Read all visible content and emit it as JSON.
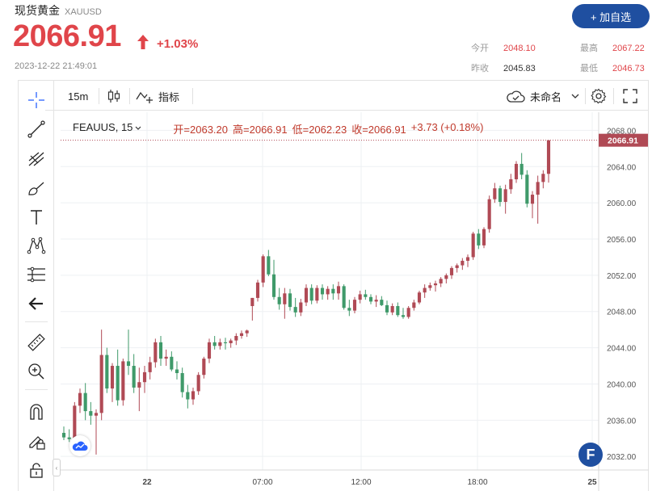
{
  "quote": {
    "name": "现货黄金",
    "code": "XAUUSD",
    "price": "2066.91",
    "change_pct": "+1.03%",
    "timestamp": "2023-12-22 21:49:01",
    "add_watchlist": "+ 加自选",
    "stats": {
      "open_label": "今开",
      "open": "2048.10",
      "high_label": "最高",
      "high": "2067.22",
      "prev_close_label": "昨收",
      "prev_close": "2045.83",
      "low_label": "最低",
      "low": "2046.73"
    },
    "colors": {
      "up": "#e0454a",
      "accent": "#1f4fa0"
    }
  },
  "toolbar": {
    "interval": "15m",
    "indicators_label": "指标",
    "layout_name": "未命名",
    "icons": [
      "candles-icon",
      "indicators-icon",
      "cloud-save-icon",
      "chevron-down-icon",
      "gear-icon",
      "fullscreen-icon"
    ]
  },
  "sidebar": {
    "tools": [
      "crosshair-icon",
      "trendline-icon",
      "fib-icon",
      "brush-icon",
      "text-icon",
      "pattern-icon",
      "measure-lines-icon",
      "back-arrow-icon",
      "ruler-icon",
      "zoom-in-icon",
      "magnet-icon",
      "lock-pencil-icon",
      "lock-icon"
    ]
  },
  "legend": {
    "symbol": "FEAUUS, 15",
    "open": "开=2063.20",
    "high": "高=2066.91",
    "low": "低=2062.23",
    "close": "收=2066.91",
    "change": "+3.73 (+0.18%)"
  },
  "chart_data": {
    "type": "candlestick",
    "interval": "15",
    "last_price_label": "2066.91",
    "y_ticks": [
      "2068.00",
      "2064.00",
      "2060.00",
      "2056.00",
      "2052.00",
      "2048.00",
      "2044.00",
      "2040.00",
      "2036.00",
      "2032.00"
    ],
    "ylim": [
      2030.5,
      2070.0
    ],
    "x_ticks": [
      "22",
      "07:00",
      "12:00",
      "18:00",
      "25"
    ],
    "up_color": "#b04a55",
    "down_color": "#3f9a6a",
    "candles": [
      [
        2034.6,
        2035.3,
        2033.8,
        2034.1
      ],
      [
        2034.1,
        2035.0,
        2033.6,
        2033.9
      ],
      [
        2033.9,
        2038.0,
        2033.4,
        2037.6
      ],
      [
        2037.6,
        2039.5,
        2036.8,
        2039.0
      ],
      [
        2039.0,
        2040.1,
        2036.0,
        2037.0
      ],
      [
        2037.0,
        2038.0,
        2035.5,
        2036.5
      ],
      [
        2036.5,
        2037.2,
        2032.2,
        2036.8
      ],
      [
        2036.8,
        2046.0,
        2036.0,
        2043.2
      ],
      [
        2043.2,
        2044.0,
        2039.0,
        2039.5
      ],
      [
        2039.5,
        2042.3,
        2038.0,
        2042.0
      ],
      [
        2042.0,
        2043.8,
        2037.6,
        2038.2
      ],
      [
        2038.2,
        2042.8,
        2037.6,
        2042.5
      ],
      [
        2042.5,
        2046.0,
        2041.0,
        2042.0
      ],
      [
        2042.0,
        2043.3,
        2039.0,
        2039.6
      ],
      [
        2039.6,
        2041.8,
        2037.0,
        2040.2
      ],
      [
        2040.2,
        2042.0,
        2039.0,
        2041.3
      ],
      [
        2041.3,
        2043.0,
        2040.5,
        2042.4
      ],
      [
        2042.4,
        2045.0,
        2041.8,
        2044.6
      ],
      [
        2044.6,
        2045.3,
        2042.0,
        2042.8
      ],
      [
        2042.8,
        2043.8,
        2042.0,
        2043.0
      ],
      [
        2043.0,
        2043.6,
        2041.4,
        2041.6
      ],
      [
        2041.6,
        2042.5,
        2040.5,
        2041.2
      ],
      [
        2041.2,
        2041.8,
        2038.5,
        2039.1
      ],
      [
        2039.1,
        2039.9,
        2037.3,
        2038.3
      ],
      [
        2038.3,
        2039.6,
        2037.7,
        2039.2
      ],
      [
        2039.2,
        2041.3,
        2038.8,
        2041.0
      ],
      [
        2041.0,
        2043.0,
        2040.6,
        2042.8
      ],
      [
        2042.8,
        2045.0,
        2042.3,
        2044.6
      ],
      [
        2044.6,
        2045.3,
        2043.8,
        2044.2
      ],
      [
        2044.2,
        2045.0,
        2043.8,
        2044.6
      ],
      [
        2044.6,
        2045.1,
        2043.8,
        2044.5
      ],
      [
        2044.5,
        2045.0,
        2044.0,
        2044.8
      ],
      [
        2044.8,
        2045.6,
        2044.3,
        2045.3
      ],
      [
        2045.3,
        2045.9,
        2045.0,
        2045.6
      ],
      [
        2045.6,
        2046.0,
        2045.2,
        2045.9
      ],
      [
        2048.6,
        2049.5,
        2047.0,
        2049.5
      ],
      [
        2049.5,
        2051.5,
        2049.1,
        2051.2
      ],
      [
        2051.2,
        2054.3,
        2050.7,
        2054.1
      ],
      [
        2054.1,
        2054.8,
        2051.9,
        2052.1
      ],
      [
        2052.1,
        2053.7,
        2049.3,
        2049.6
      ],
      [
        2049.6,
        2050.6,
        2048.2,
        2048.8
      ],
      [
        2048.8,
        2050.6,
        2047.2,
        2050.0
      ],
      [
        2050.0,
        2050.5,
        2048.1,
        2048.5
      ],
      [
        2048.5,
        2049.5,
        2047.4,
        2047.9
      ],
      [
        2047.9,
        2049.4,
        2047.5,
        2049.0
      ],
      [
        2049.0,
        2051.0,
        2048.6,
        2050.6
      ],
      [
        2050.6,
        2051.0,
        2048.8,
        2049.2
      ],
      [
        2049.2,
        2050.9,
        2048.9,
        2050.6
      ],
      [
        2050.6,
        2051.0,
        2049.3,
        2049.9
      ],
      [
        2049.9,
        2050.8,
        2049.3,
        2050.5
      ],
      [
        2050.5,
        2051.0,
        2049.3,
        2050.0
      ],
      [
        2050.0,
        2051.3,
        2049.3,
        2050.8
      ],
      [
        2050.8,
        2051.0,
        2048.2,
        2048.4
      ],
      [
        2048.4,
        2049.3,
        2047.5,
        2048.1
      ],
      [
        2048.1,
        2049.6,
        2047.8,
        2049.3
      ],
      [
        2049.3,
        2050.3,
        2048.9,
        2049.9
      ],
      [
        2049.9,
        2050.4,
        2049.3,
        2049.6
      ],
      [
        2049.6,
        2049.9,
        2048.8,
        2049.1
      ],
      [
        2049.1,
        2049.8,
        2048.5,
        2049.3
      ],
      [
        2049.3,
        2049.7,
        2048.6,
        2048.7
      ],
      [
        2048.7,
        2049.2,
        2047.6,
        2047.9
      ],
      [
        2047.9,
        2048.9,
        2047.6,
        2048.6
      ],
      [
        2048.6,
        2049.0,
        2047.4,
        2047.6
      ],
      [
        2047.6,
        2048.4,
        2047.2,
        2047.4
      ],
      [
        2047.4,
        2048.6,
        2047.2,
        2048.4
      ],
      [
        2048.4,
        2049.3,
        2048.1,
        2049.0
      ],
      [
        2049.0,
        2050.3,
        2048.8,
        2050.1
      ],
      [
        2050.1,
        2051.0,
        2049.5,
        2050.6
      ],
      [
        2050.6,
        2051.2,
        2050.3,
        2050.9
      ],
      [
        2050.9,
        2051.4,
        2050.2,
        2051.1
      ],
      [
        2051.1,
        2051.8,
        2050.7,
        2051.6
      ],
      [
        2051.6,
        2052.2,
        2051.1,
        2052.0
      ],
      [
        2052.0,
        2053.0,
        2051.6,
        2052.8
      ],
      [
        2052.8,
        2053.3,
        2052.3,
        2053.1
      ],
      [
        2053.1,
        2053.9,
        2052.6,
        2053.6
      ],
      [
        2053.6,
        2054.3,
        2052.9,
        2054.0
      ],
      [
        2054.0,
        2056.8,
        2053.7,
        2056.6
      ],
      [
        2056.6,
        2057.1,
        2054.9,
        2055.3
      ],
      [
        2055.3,
        2057.3,
        2055.0,
        2057.1
      ],
      [
        2057.1,
        2060.8,
        2056.7,
        2060.4
      ],
      [
        2060.4,
        2062.2,
        2060.0,
        2061.6
      ],
      [
        2061.6,
        2061.9,
        2059.6,
        2060.1
      ],
      [
        2060.1,
        2062.0,
        2058.8,
        2061.5
      ],
      [
        2061.5,
        2063.2,
        2061.0,
        2062.6
      ],
      [
        2062.6,
        2064.6,
        2062.2,
        2064.3
      ],
      [
        2064.3,
        2065.5,
        2062.6,
        2063.1
      ],
      [
        2063.1,
        2063.6,
        2059.5,
        2059.9
      ],
      [
        2059.9,
        2061.3,
        2058.3,
        2060.9
      ],
      [
        2060.9,
        2063.0,
        2057.7,
        2062.3
      ],
      [
        2062.3,
        2063.6,
        2061.6,
        2063.2
      ],
      [
        2063.2,
        2066.91,
        2062.23,
        2066.91
      ]
    ]
  }
}
